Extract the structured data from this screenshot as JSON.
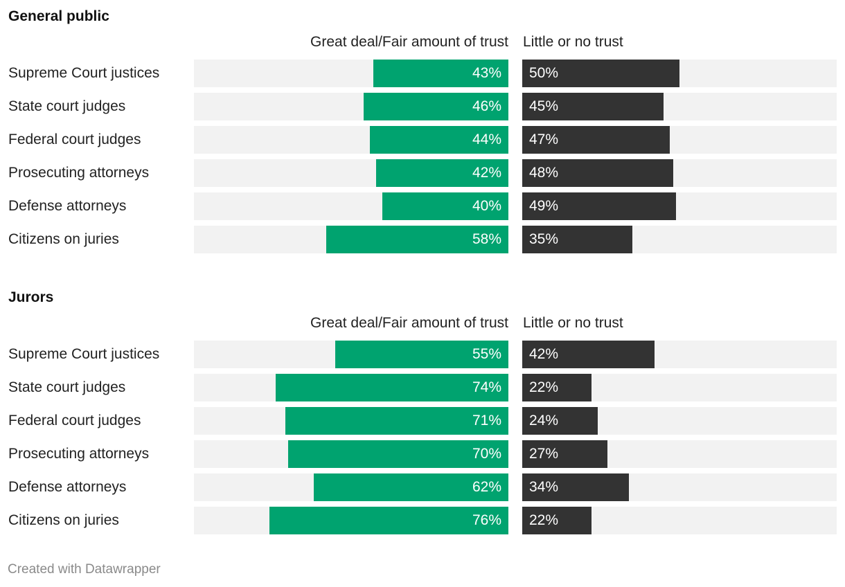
{
  "chart_data": [
    {
      "type": "bar",
      "title": "General public",
      "categories": [
        "Supreme Court justices",
        "State court judges",
        "Federal court judges",
        "Prosecuting attorneys",
        "Defense attorneys",
        "Citizens on juries"
      ],
      "series": [
        {
          "name": "Great deal/Fair amount of trust",
          "color": "#00a36f",
          "values": [
            43,
            46,
            44,
            42,
            40,
            58
          ],
          "labels": [
            "43%",
            "46%",
            "44%",
            "42%",
            "40%",
            "58%"
          ]
        },
        {
          "name": "Little or no trust",
          "color": "#333333",
          "values": [
            50,
            45,
            47,
            48,
            49,
            35
          ],
          "labels": [
            "50%",
            "45%",
            "47%",
            "48%",
            "49%",
            "35%"
          ]
        }
      ],
      "xlim": [
        0,
        100
      ]
    },
    {
      "type": "bar",
      "title": "Jurors",
      "categories": [
        "Supreme Court justices",
        "State court judges",
        "Federal court judges",
        "Prosecuting attorneys",
        "Defense attorneys",
        "Citizens on juries"
      ],
      "series": [
        {
          "name": "Great deal/Fair amount of trust",
          "color": "#00a36f",
          "values": [
            55,
            74,
            71,
            70,
            62,
            76
          ],
          "labels": [
            "55%",
            "74%",
            "71%",
            "70%",
            "62%",
            "76%"
          ]
        },
        {
          "name": "Little or no trust",
          "color": "#333333",
          "values": [
            42,
            22,
            24,
            27,
            34,
            22
          ],
          "labels": [
            "42%",
            "22%",
            "24%",
            "27%",
            "34%",
            "22%"
          ]
        }
      ],
      "xlim": [
        0,
        100
      ]
    }
  ],
  "footer": "Created with Datawrapper",
  "colors": {
    "track": "#f2f2f2",
    "positive": "#00a36f",
    "negative": "#333333"
  }
}
